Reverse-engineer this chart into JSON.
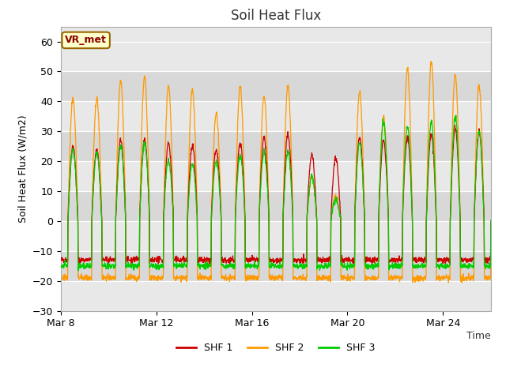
{
  "title": "Soil Heat Flux",
  "xlabel_pos": "right",
  "xlabel": "Time",
  "ylabel": "Soil Heat Flux (W/m2)",
  "xlim_days": [
    0,
    18
  ],
  "ylim": [
    -30,
    65
  ],
  "yticks": [
    -30,
    -20,
    -10,
    0,
    10,
    20,
    30,
    40,
    50,
    60
  ],
  "xtick_positions": [
    0,
    4,
    8,
    12,
    16
  ],
  "xtick_labels": [
    "Mar 8",
    "Mar 12",
    "Mar 16",
    "Mar 20",
    "Mar 24"
  ],
  "colors": {
    "SHF 1": "#cc0000",
    "SHF 2": "#ff9900",
    "SHF 3": "#00cc00"
  },
  "fig_bg_color": "#ffffff",
  "plot_bg_color": "#e8e8e8",
  "band_color_light": "#f0f0f0",
  "band_color_dark": "#e0e0e0",
  "annotation_text": "VR_met",
  "annotation_bg": "#ffffcc",
  "annotation_border": "#996600",
  "legend_labels": [
    "SHF 1",
    "SHF 2",
    "SHF 3"
  ],
  "shf1_amps": [
    25,
    24,
    27,
    27,
    26,
    25,
    24,
    26,
    28,
    29,
    22,
    21,
    28,
    27,
    28,
    29,
    31,
    30
  ],
  "shf2_amps": [
    41,
    41,
    47,
    48,
    45,
    44,
    36,
    45,
    42,
    45,
    15,
    8,
    43,
    35,
    51,
    53,
    49,
    45
  ],
  "shf3_amps": [
    24,
    23,
    25,
    26,
    20,
    19,
    20,
    22,
    23,
    23,
    15,
    7,
    26,
    33,
    32,
    33,
    35,
    30
  ],
  "night_shf1": -13,
  "night_shf2": -19,
  "night_shf3": -15,
  "n_days": 18,
  "pts_per_day": 96
}
